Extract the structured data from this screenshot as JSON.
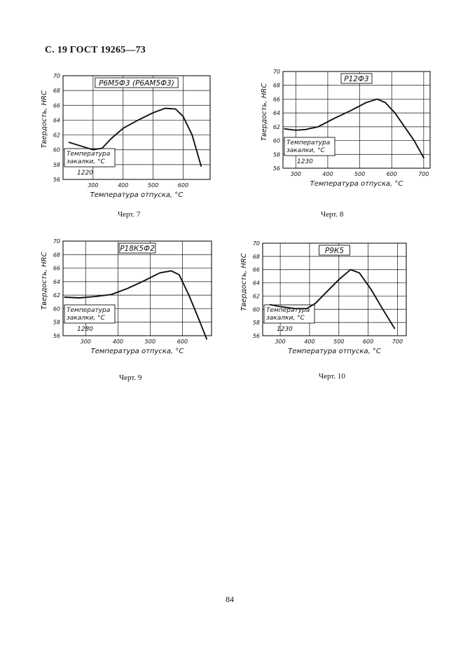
{
  "page": {
    "header": "С. 19 ГОСТ 19265—73",
    "page_number": "84"
  },
  "chart_data": [
    {
      "type": "line",
      "title": "Р6М5Ф3 (Р6АМ5Ф3)",
      "caption": "Черт. 7",
      "xlabel": "Температура отпуска, °С",
      "ylabel": "Твердость, HRC",
      "xlim": [
        200,
        690
      ],
      "ylim": [
        56,
        70
      ],
      "xticks": [
        300,
        400,
        500,
        600
      ],
      "yticks": [
        56,
        58,
        60,
        62,
        64,
        66,
        68,
        70
      ],
      "quench_label": "Температура закалки, °С",
      "quench_value": "1220",
      "grid": true,
      "series": [
        {
          "x": [
            220,
            260,
            300,
            330,
            360,
            400,
            450,
            500,
            540,
            575,
            600,
            630,
            660
          ],
          "y": [
            61.0,
            60.5,
            60.0,
            60.2,
            61.5,
            62.9,
            64.0,
            65.0,
            65.6,
            65.5,
            64.5,
            62.0,
            57.8
          ]
        }
      ]
    },
    {
      "type": "line",
      "title": "Р12Ф3",
      "caption": "Черт. 8",
      "xlabel": "Температура отпуска, °С",
      "ylabel": "Твердость, HRC",
      "xlim": [
        260,
        720
      ],
      "ylim": [
        56,
        70
      ],
      "xticks": [
        300,
        400,
        500,
        600,
        700
      ],
      "yticks": [
        56,
        58,
        60,
        62,
        64,
        66,
        68,
        70
      ],
      "quench_label": "Температура закалки, °С",
      "quench_value": "1230",
      "grid": true,
      "series": [
        {
          "x": [
            265,
            300,
            330,
            370,
            420,
            470,
            520,
            555,
            580,
            610,
            640,
            670,
            700
          ],
          "y": [
            61.7,
            61.5,
            61.6,
            62.0,
            63.2,
            64.3,
            65.5,
            66.0,
            65.5,
            64.0,
            62.0,
            60.0,
            57.5
          ]
        }
      ]
    },
    {
      "type": "line",
      "title": "Р18К5Ф2",
      "caption": "Черт. 9",
      "xlabel": "Температура отпуска, °С",
      "ylabel": "Твердость, HRC",
      "xlim": [
        230,
        690
      ],
      "ylim": [
        56,
        70
      ],
      "xticks": [
        300,
        400,
        500,
        600
      ],
      "yticks": [
        56,
        58,
        60,
        62,
        64,
        66,
        68,
        70
      ],
      "quench_label": "Температура закалки, °С",
      "quench_value": "1280",
      "grid": true,
      "series": [
        {
          "x": [
            235,
            280,
            330,
            380,
            430,
            480,
            530,
            565,
            590,
            620,
            650,
            675
          ],
          "y": [
            61.7,
            61.6,
            61.8,
            62.1,
            63.0,
            64.1,
            65.3,
            65.6,
            65.0,
            62.0,
            58.5,
            55.5
          ]
        }
      ]
    },
    {
      "type": "line",
      "title": "Р9К5",
      "caption": "Черт. 10",
      "xlabel": "Температура отпуска, °С",
      "ylabel": "Твердость, HRC",
      "xlim": [
        240,
        730
      ],
      "ylim": [
        56,
        70
      ],
      "xticks": [
        300,
        400,
        500,
        600,
        700
      ],
      "yticks": [
        56,
        58,
        60,
        62,
        64,
        66,
        68,
        70
      ],
      "quench_label": "Температура закалки, °С",
      "quench_value": "1230",
      "grid": true,
      "series": [
        {
          "x": [
            265,
            300,
            350,
            390,
            420,
            460,
            500,
            540,
            570,
            610,
            650,
            690
          ],
          "y": [
            60.7,
            60.4,
            60.1,
            60.1,
            60.9,
            62.7,
            64.5,
            66.0,
            65.5,
            63.0,
            60.0,
            57.1
          ]
        }
      ]
    }
  ]
}
